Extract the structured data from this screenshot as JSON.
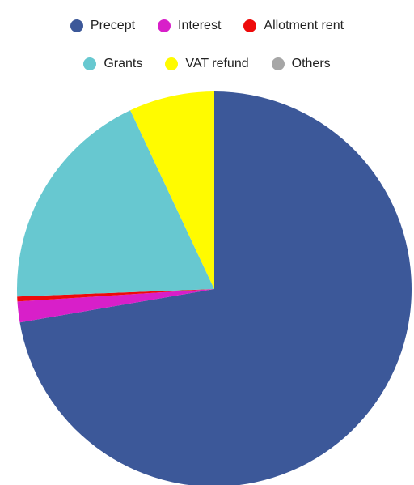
{
  "chart_data": {
    "type": "pie",
    "title": "",
    "legend_position": "top",
    "slices": [
      {
        "label": "Precept",
        "value": 72.3,
        "color": "#3c5899"
      },
      {
        "label": "Interest",
        "value": 1.7,
        "color": "#d81fc9"
      },
      {
        "label": "Allotment rent",
        "value": 0.4,
        "color": "#ee0a0a"
      },
      {
        "label": "Grants",
        "value": 18.6,
        "color": "#67c8d0"
      },
      {
        "label": "VAT refund",
        "value": 7.0,
        "color": "#fffb00"
      },
      {
        "label": "Others",
        "value": 0.0,
        "color": "#a6a6a6"
      }
    ]
  }
}
